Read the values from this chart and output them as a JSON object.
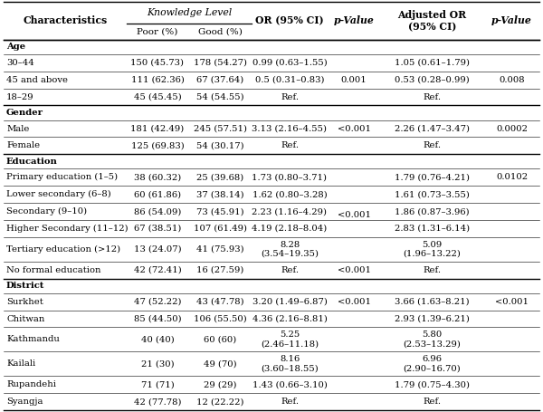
{
  "rows": [
    {
      "label": "Age",
      "is_section": true,
      "poor": "",
      "good": "",
      "or_ci": "",
      "p": "",
      "adj_or": "",
      "p2": ""
    },
    {
      "label": "30–44",
      "is_section": false,
      "poor": "150 (45.73)",
      "good": "178 (54.27)",
      "or_ci": "0.99 (0.63–1.55)",
      "p": "",
      "adj_or": "1.05 (0.61–1.79)",
      "p2": ""
    },
    {
      "label": "45 and above",
      "is_section": false,
      "poor": "111 (62.36)",
      "good": "67 (37.64)",
      "or_ci": "0.5 (0.31–0.83)",
      "p": "",
      "adj_or": "0.53 (0.28–0.99)",
      "p2": ""
    },
    {
      "label": "18–29",
      "is_section": false,
      "poor": "45 (45.45)",
      "good": "54 (54.55)",
      "or_ci": "Ref.",
      "p": "",
      "adj_or": "Ref.",
      "p2": ""
    },
    {
      "label": "Gender",
      "is_section": true,
      "poor": "",
      "good": "",
      "or_ci": "",
      "p": "",
      "adj_or": "",
      "p2": ""
    },
    {
      "label": "Male",
      "is_section": false,
      "poor": "181 (42.49)",
      "good": "245 (57.51)",
      "or_ci": "3.13 (2.16–4.55)",
      "p": "<0.001",
      "adj_or": "2.26 (1.47–3.47)",
      "p2": "0.0002"
    },
    {
      "label": "Female",
      "is_section": false,
      "poor": "125 (69.83)",
      "good": "54 (30.17)",
      "or_ci": "Ref.",
      "p": "",
      "adj_or": "Ref.",
      "p2": ""
    },
    {
      "label": "Education",
      "is_section": true,
      "poor": "",
      "good": "",
      "or_ci": "",
      "p": "",
      "adj_or": "",
      "p2": ""
    },
    {
      "label": "Primary education (1–5)",
      "is_section": false,
      "poor": "38 (60.32)",
      "good": "25 (39.68)",
      "or_ci": "1.73 (0.80–3.71)",
      "p": "",
      "adj_or": "1.79 (0.76–4.21)",
      "p2": "0.0102"
    },
    {
      "label": "Lower secondary (6–8)",
      "is_section": false,
      "poor": "60 (61.86)",
      "good": "37 (38.14)",
      "or_ci": "1.62 (0.80–3.28)",
      "p": "",
      "adj_or": "1.61 (0.73–3.55)",
      "p2": ""
    },
    {
      "label": "Secondary (9–10)",
      "is_section": false,
      "poor": "86 (54.09)",
      "good": "73 (45.91)",
      "or_ci": "2.23 (1.16–4.29)",
      "p": "",
      "adj_or": "1.86 (0.87–3.96)",
      "p2": ""
    },
    {
      "label": "Higher Secondary (11–12)",
      "is_section": false,
      "poor": "67 (38.51)",
      "good": "107 (61.49)",
      "or_ci": "4.19 (2.18–8.04)",
      "p": "",
      "adj_or": "2.83 (1.31–6.14)",
      "p2": ""
    },
    {
      "label": "Tertiary education (>12)",
      "is_section": false,
      "poor": "13 (24.07)",
      "good": "41 (75.93)",
      "or_ci": "8.28\n(3.54–19.35)",
      "p": "",
      "adj_or": "5.09\n(1.96–13.22)",
      "p2": ""
    },
    {
      "label": "No formal education",
      "is_section": false,
      "poor": "42 (72.41)",
      "good": "16 (27.59)",
      "or_ci": "Ref.",
      "p": "<0.001",
      "adj_or": "Ref.",
      "p2": ""
    },
    {
      "label": "District",
      "is_section": true,
      "poor": "",
      "good": "",
      "or_ci": "",
      "p": "",
      "adj_or": "",
      "p2": ""
    },
    {
      "label": "Surkhet",
      "is_section": false,
      "poor": "47 (52.22)",
      "good": "43 (47.78)",
      "or_ci": "3.20 (1.49–6.87)",
      "p": "<0.001",
      "adj_or": "3.66 (1.63–8.21)",
      "p2": "<0.001"
    },
    {
      "label": "Chitwan",
      "is_section": false,
      "poor": "85 (44.50)",
      "good": "106 (55.50)",
      "or_ci": "4.36 (2.16–8.81)",
      "p": "",
      "adj_or": "2.93 (1.39–6.21)",
      "p2": ""
    },
    {
      "label": "Kathmandu",
      "is_section": false,
      "poor": "40 (40)",
      "good": "60 (60)",
      "or_ci": "5.25\n(2.46–11.18)",
      "p": "",
      "adj_or": "5.80\n(2.53–13.29)",
      "p2": ""
    },
    {
      "label": "Kailali",
      "is_section": false,
      "poor": "21 (30)",
      "good": "49 (70)",
      "or_ci": "8.16\n(3.60–18.55)",
      "p": "",
      "adj_or": "6.96\n(2.90–16.70)",
      "p2": ""
    },
    {
      "label": "Rupandehi",
      "is_section": false,
      "poor": "71 (71)",
      "good": "29 (29)",
      "or_ci": "1.43 (0.66–3.10)",
      "p": "",
      "adj_or": "1.79 (0.75–4.30)",
      "p2": ""
    },
    {
      "label": "Syangja",
      "is_section": false,
      "poor": "42 (77.78)",
      "good": "12 (22.22)",
      "or_ci": "Ref.",
      "p": "",
      "adj_or": "Ref.",
      "p2": ""
    }
  ],
  "age_p": "0.001",
  "age_p2": "0.008",
  "edu_p": "<0.001",
  "bg_color": "#ffffff",
  "font_size": 7.2,
  "header_font_size": 7.8
}
